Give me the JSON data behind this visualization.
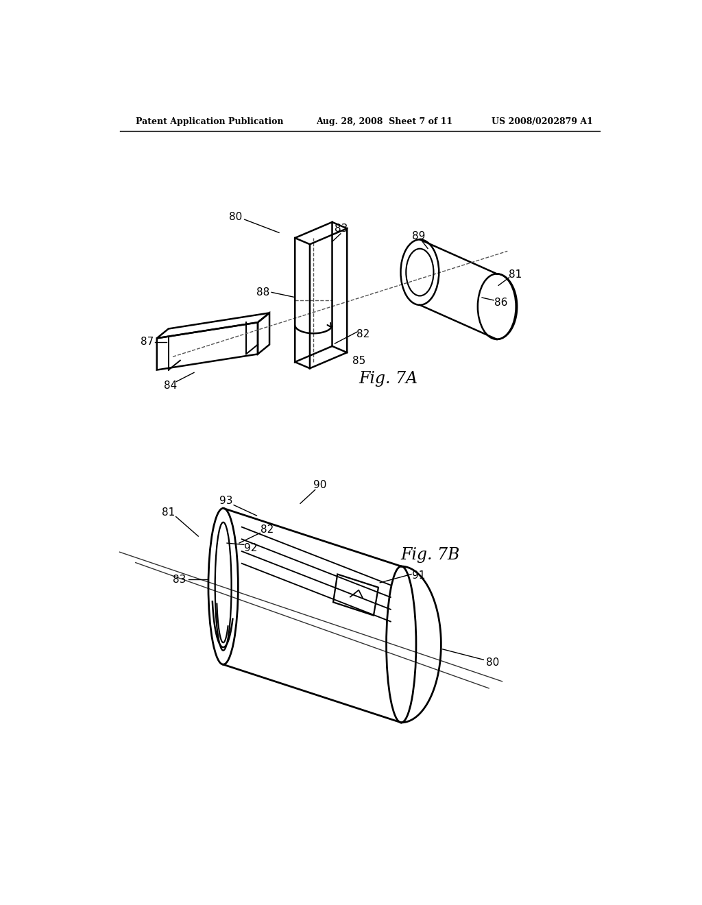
{
  "header_left": "Patent Application Publication",
  "header_mid": "Aug. 28, 2008  Sheet 7 of 11",
  "header_right": "US 2008/0202879 A1",
  "fig7a_label": "Fig. 7A",
  "fig7b_label": "Fig. 7B",
  "bg_color": "#ffffff",
  "line_color": "#000000",
  "dashed_color": "#555555"
}
